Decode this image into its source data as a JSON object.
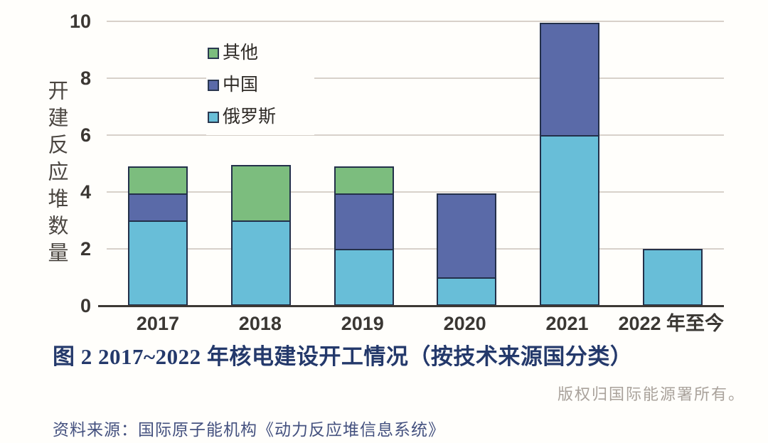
{
  "figure": {
    "title": "图 2 2017~2022 年核电建设开工情况（按技术来源国分类）",
    "copyright": "版权归国际能源署所有。",
    "source": "资料来源：国际原子能机构《动力反应堆信息系统》"
  },
  "chart_data": {
    "type": "bar",
    "stacked": true,
    "title": "",
    "xlabel": "",
    "ylabel": "开建反应堆数量",
    "ylim": [
      0,
      10
    ],
    "yticks": [
      0,
      2,
      4,
      6,
      8,
      10
    ],
    "grid": true,
    "legend_position": "upper-left-inside",
    "categories": [
      "2017",
      "2018",
      "2019",
      "2020",
      "2021",
      "2022 年至今"
    ],
    "series": [
      {
        "name": "俄罗斯",
        "color": "#68bed8",
        "values": [
          3,
          3,
          2,
          1,
          6,
          2
        ]
      },
      {
        "name": "中国",
        "color": "#5a6aa8",
        "values": [
          1,
          0,
          2,
          3,
          4,
          0
        ]
      },
      {
        "name": "其他",
        "color": "#7cbd7e",
        "values": [
          1,
          2,
          1,
          0,
          0,
          0
        ]
      }
    ],
    "totals": [
      5,
      5,
      5,
      4,
      10,
      2
    ],
    "bar_border_color": "#23304a",
    "gridline_color": "#d8d1ca",
    "axis_color": "#3d3935"
  }
}
